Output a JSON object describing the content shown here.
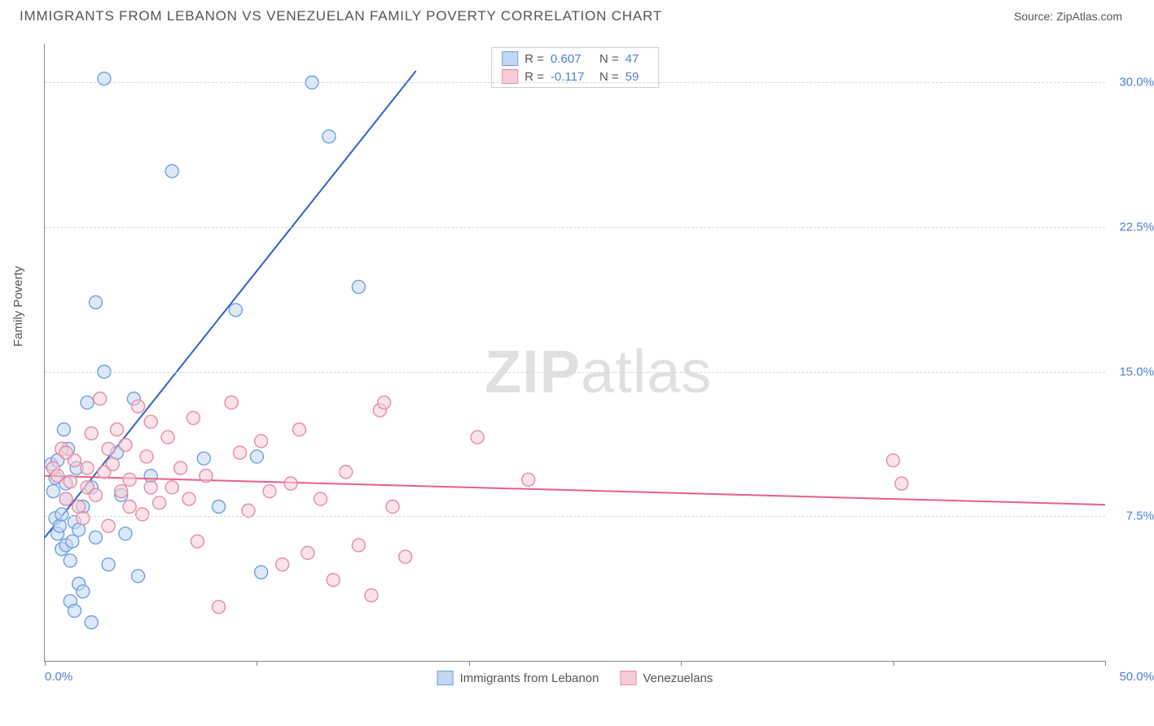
{
  "title": "IMMIGRANTS FROM LEBANON VS VENEZUELAN FAMILY POVERTY CORRELATION CHART",
  "source_label": "Source: ZipAtlas.com",
  "y_axis_label": "Family Poverty",
  "watermark": {
    "zip": "ZIP",
    "atlas": "atlas"
  },
  "chart": {
    "type": "scatter",
    "xlim": [
      0,
      50
    ],
    "ylim": [
      0,
      32
    ],
    "x_ticks": [
      0,
      10,
      20,
      30,
      40,
      50
    ],
    "x_tick_labels": {
      "0": "0.0%",
      "50": "50.0%"
    },
    "y_gridlines": [
      7.5,
      15.0,
      22.5,
      30.0
    ],
    "y_tick_labels": [
      "7.5%",
      "15.0%",
      "22.5%",
      "30.0%"
    ],
    "grid_color": "#d6d6d6",
    "axis_color": "#888888",
    "background_color": "#ffffff",
    "marker_radius": 8,
    "marker_stroke_width": 1.4,
    "regression_line_width": 2,
    "series": [
      {
        "name": "Immigrants from Lebanon",
        "fill": "#c3d7f2",
        "stroke": "#6fa0e0",
        "fill_opacity": 0.55,
        "line_color": "#2a62c9",
        "R": "0.607",
        "N": "47",
        "regression": {
          "x1": 0,
          "y1": 6.4,
          "x2": 17.5,
          "y2": 30.6
        },
        "points": [
          [
            0.3,
            10.2
          ],
          [
            0.4,
            8.8
          ],
          [
            0.5,
            9.5
          ],
          [
            0.5,
            7.4
          ],
          [
            0.6,
            6.6
          ],
          [
            0.6,
            10.4
          ],
          [
            0.7,
            7.0
          ],
          [
            0.8,
            5.8
          ],
          [
            0.8,
            7.6
          ],
          [
            1.0,
            6.0
          ],
          [
            1.0,
            8.4
          ],
          [
            1.0,
            9.2
          ],
          [
            1.2,
            3.1
          ],
          [
            1.2,
            5.2
          ],
          [
            1.3,
            6.2
          ],
          [
            1.4,
            2.6
          ],
          [
            1.4,
            7.2
          ],
          [
            1.6,
            4.0
          ],
          [
            1.6,
            6.8
          ],
          [
            1.8,
            3.6
          ],
          [
            1.8,
            8.0
          ],
          [
            2.0,
            13.4
          ],
          [
            2.2,
            2.0
          ],
          [
            2.2,
            9.0
          ],
          [
            2.4,
            6.4
          ],
          [
            2.4,
            18.6
          ],
          [
            2.8,
            15.0
          ],
          [
            2.8,
            30.2
          ],
          [
            3.0,
            5.0
          ],
          [
            3.4,
            10.8
          ],
          [
            3.6,
            8.6
          ],
          [
            3.8,
            6.6
          ],
          [
            4.2,
            13.6
          ],
          [
            4.4,
            4.4
          ],
          [
            5.0,
            9.6
          ],
          [
            6.0,
            25.4
          ],
          [
            7.5,
            10.5
          ],
          [
            8.2,
            8.0
          ],
          [
            9.0,
            18.2
          ],
          [
            10.0,
            10.6
          ],
          [
            10.2,
            4.6
          ],
          [
            12.6,
            30.0
          ],
          [
            13.4,
            27.2
          ],
          [
            14.8,
            19.4
          ],
          [
            1.1,
            11.0
          ],
          [
            0.9,
            12.0
          ],
          [
            1.5,
            10.0
          ]
        ]
      },
      {
        "name": "Venezuelans",
        "fill": "#f6cdd7",
        "stroke": "#e88aa4",
        "fill_opacity": 0.55,
        "line_color": "#e75f8a",
        "R": "-0.117",
        "N": "59",
        "regression": {
          "x1": 0,
          "y1": 9.6,
          "x2": 50,
          "y2": 8.1
        },
        "points": [
          [
            0.4,
            10.0
          ],
          [
            0.6,
            9.6
          ],
          [
            0.8,
            11.0
          ],
          [
            1.0,
            8.4
          ],
          [
            1.2,
            9.3
          ],
          [
            1.4,
            10.4
          ],
          [
            1.6,
            8.0
          ],
          [
            1.8,
            7.4
          ],
          [
            2.0,
            9.0
          ],
          [
            2.2,
            11.8
          ],
          [
            2.4,
            8.6
          ],
          [
            2.6,
            13.6
          ],
          [
            2.8,
            9.8
          ],
          [
            3.0,
            7.0
          ],
          [
            3.2,
            10.2
          ],
          [
            3.4,
            12.0
          ],
          [
            3.6,
            8.8
          ],
          [
            3.8,
            11.2
          ],
          [
            4.0,
            9.4
          ],
          [
            4.4,
            13.2
          ],
          [
            4.6,
            7.6
          ],
          [
            4.8,
            10.6
          ],
          [
            5.0,
            12.4
          ],
          [
            5.4,
            8.2
          ],
          [
            5.8,
            11.6
          ],
          [
            6.0,
            9.0
          ],
          [
            6.4,
            10.0
          ],
          [
            6.8,
            8.4
          ],
          [
            7.0,
            12.6
          ],
          [
            7.2,
            6.2
          ],
          [
            7.6,
            9.6
          ],
          [
            8.2,
            2.8
          ],
          [
            8.8,
            13.4
          ],
          [
            9.2,
            10.8
          ],
          [
            9.6,
            7.8
          ],
          [
            10.2,
            11.4
          ],
          [
            10.6,
            8.8
          ],
          [
            11.2,
            5.0
          ],
          [
            11.6,
            9.2
          ],
          [
            12.0,
            12.0
          ],
          [
            12.4,
            5.6
          ],
          [
            13.0,
            8.4
          ],
          [
            13.6,
            4.2
          ],
          [
            14.2,
            9.8
          ],
          [
            14.8,
            6.0
          ],
          [
            15.4,
            3.4
          ],
          [
            15.8,
            13.0
          ],
          [
            16.4,
            8.0
          ],
          [
            17.0,
            5.4
          ],
          [
            20.4,
            11.6
          ],
          [
            22.8,
            9.4
          ],
          [
            16.0,
            13.4
          ],
          [
            40.0,
            10.4
          ],
          [
            40.4,
            9.2
          ],
          [
            1.0,
            10.8
          ],
          [
            2.0,
            10.0
          ],
          [
            3.0,
            11.0
          ],
          [
            4.0,
            8.0
          ],
          [
            5.0,
            9.0
          ]
        ]
      }
    ]
  },
  "legend_top": {
    "r_label": "R =",
    "n_label": "N ="
  },
  "legend_bottom": {
    "items": [
      "Immigrants from Lebanon",
      "Venezuelans"
    ]
  }
}
